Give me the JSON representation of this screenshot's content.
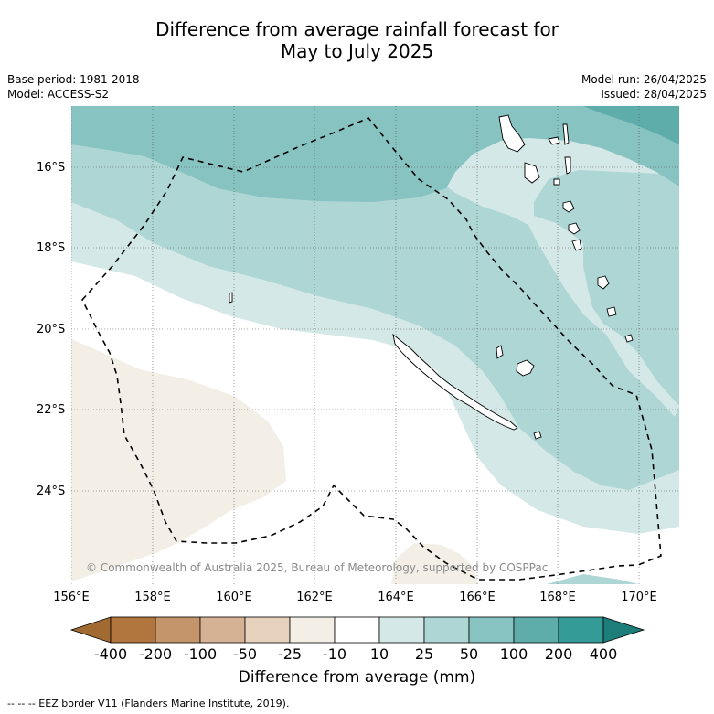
{
  "title_line1": "Difference from average rainfall forecast for",
  "title_line2": "May to July 2025",
  "base_period": "Base period: 1981-2018",
  "model": "Model: ACCESS-S2",
  "model_run": "Model run: 26/04/2025",
  "issued": "Issued: 28/04/2025",
  "copyright": "© Commonwealth of Australia 2025, Bureau of Meteorology, supported by COSPPac",
  "lat_labels": [
    "16°S",
    "18°S",
    "20°S",
    "22°S",
    "24°S"
  ],
  "lon_labels": [
    "156°E",
    "158°E",
    "160°E",
    "162°E",
    "164°E",
    "166°E",
    "168°E",
    "170°E"
  ],
  "colorbar": {
    "title": "Difference from average (mm)",
    "ticks": [
      "-400",
      "-200",
      "-100",
      "-50",
      "-25",
      "-10",
      "10",
      "25",
      "50",
      "100",
      "200",
      "400"
    ],
    "colors": [
      "#a16a32",
      "#b0763d",
      "#c4956a",
      "#d5b293",
      "#e6d1bd",
      "#f3eee6",
      "#ffffff",
      "#d4e8e7",
      "#aed6d5",
      "#87c3c1",
      "#5eadaa",
      "#349b97",
      "#1d7d79"
    ]
  },
  "footnote": "--  --  -- EEZ border V11 (Flanders Marine Institute, 2019)."
}
